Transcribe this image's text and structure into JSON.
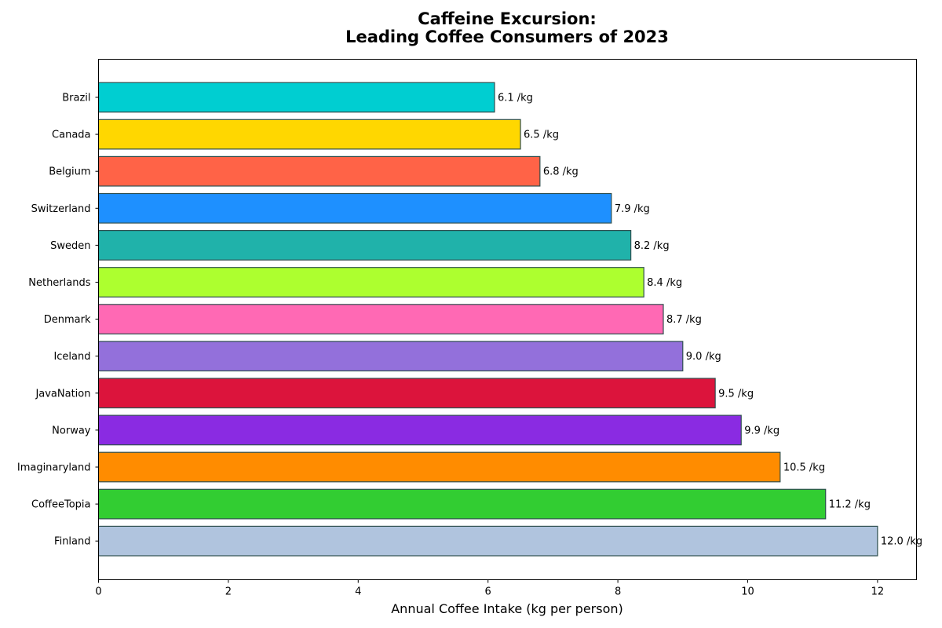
{
  "chart_data": {
    "type": "bar",
    "orientation": "horizontal",
    "title_lines": [
      "Caffeine Excursion:",
      "Leading Coffee Consumers of 2023"
    ],
    "xlabel": "Annual Coffee Intake (kg per person)",
    "ylabel": "",
    "xlim": [
      0,
      12.6
    ],
    "x_ticks": [
      0,
      2,
      4,
      6,
      8,
      10,
      12
    ],
    "categories": [
      "Brazil",
      "Canada",
      "Belgium",
      "Switzerland",
      "Sweden",
      "Netherlands",
      "Denmark",
      "Iceland",
      "JavaNation",
      "Norway",
      "Imaginaryland",
      "CoffeeTopia",
      "Finland"
    ],
    "values": [
      6.1,
      6.5,
      6.8,
      7.9,
      8.2,
      8.4,
      8.7,
      9.0,
      9.5,
      9.9,
      10.5,
      11.2,
      12.0
    ],
    "value_labels": [
      "6.1 /kg",
      "6.5 /kg",
      "6.8 /kg",
      "7.9 /kg",
      "8.2 /kg",
      "8.4 /kg",
      "8.7 /kg",
      "9.0 /kg",
      "9.5 /kg",
      "9.9 /kg",
      "10.5 /kg",
      "11.2 /kg",
      "12.0 /kg"
    ],
    "colors": [
      "#00CED1",
      "#FFD700",
      "#FF6347",
      "#1E90FF",
      "#20B2AA",
      "#ADFF2F",
      "#FF69B4",
      "#9370DB",
      "#DC143C",
      "#8A2BE2",
      "#FF8C00",
      "#32CD32",
      "#B0C4DE"
    ],
    "bar_edge_color": "#2F4F4F",
    "grid": false,
    "legend": "none"
  }
}
